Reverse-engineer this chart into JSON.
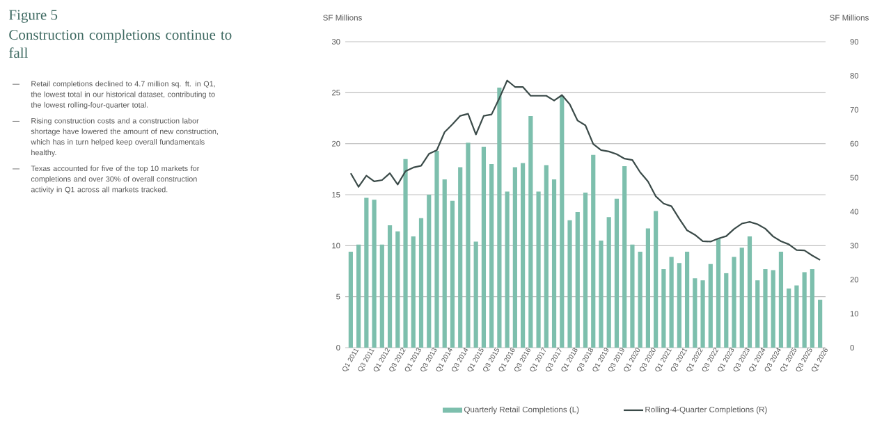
{
  "chart_data": {
    "type": "bar",
    "title": "Figure 5",
    "subtitle": "Construction completions continue to fall",
    "annotations": [
      "Retail completions declined to 4.7 million sq. ft. in Q1, the lowest total in our historical dataset, contributing to the lowest rolling-four-quarter total.",
      "Rising construction costs and a construction labor shortage have lowered the amount of new construction, which has in turn helped keep overall fundamentals healthy.",
      "Texas accounted for five of the top 10 markets for completions and over 30% of overall construction activity in Q1 across all markets tracked."
    ],
    "ylabel": "SF Millions",
    "y2label": "SF Millions",
    "categories": [
      "Q1 2011",
      null,
      "Q3 2011",
      null,
      "Q1 2012",
      null,
      "Q3 2012",
      null,
      "Q1 2013",
      null,
      "Q3 2013",
      null,
      "Q1 2014",
      null,
      "Q3 2014",
      null,
      "Q1 2015",
      null,
      "Q3 2015",
      null,
      "Q1 2016",
      null,
      "Q3 2016",
      null,
      "Q1 2017",
      null,
      "Q3 2017",
      null,
      "Q1 2018",
      null,
      "Q3 2018",
      null,
      "Q1 2019",
      null,
      "Q3 2019",
      null,
      "Q1 2020",
      null,
      "Q3 2020",
      null,
      "Q1 2021",
      null,
      "Q3 2021",
      null,
      "Q1 2022",
      null,
      "Q3 2022",
      null,
      "Q1 2023",
      null,
      "Q3 2023",
      null,
      "Q1 2024",
      null,
      "Q3 2024",
      null,
      "Q1 2025",
      null,
      "Q3 2025",
      null,
      "Q1 2026"
    ],
    "series": [
      {
        "name": "Quarterly Retail Completions (L)",
        "color": "#7dbfad",
        "values": [
          9.4,
          10.1,
          14.7,
          14.5,
          10.1,
          12.0,
          11.4,
          18.5,
          10.9,
          12.7,
          15.0,
          19.3,
          16.5,
          14.4,
          17.7,
          20.1,
          10.4,
          19.7,
          18.0,
          25.5,
          15.3,
          17.7,
          18.1,
          22.7,
          15.3,
          17.9,
          16.5,
          24.7,
          12.5,
          13.3,
          15.2,
          18.9,
          10.5,
          12.8,
          14.6,
          17.8,
          10.1,
          9.4,
          11.7,
          13.4,
          7.7,
          8.9,
          8.3,
          9.4,
          6.8,
          6.6,
          8.2,
          10.7,
          7.3,
          8.9,
          9.8,
          10.9,
          6.6,
          7.7,
          7.6,
          9.4,
          5.8,
          6.1,
          7.4,
          7.7,
          4.7
        ]
      },
      {
        "name": "Rolling-4-Quarter Completions (R)",
        "type": "line",
        "axis": "y2",
        "color": "#3a4a48",
        "values": [
          51.3,
          47.3,
          50.6,
          48.9,
          49.3,
          51.3,
          48.0,
          51.9,
          53.0,
          53.5,
          57.0,
          58.1,
          63.4,
          65.7,
          68.2,
          68.8,
          62.7,
          68.2,
          68.6,
          73.4,
          78.6,
          76.7,
          76.7,
          74.1,
          74.1,
          74.1,
          72.7,
          74.3,
          71.6,
          66.8,
          65.4,
          59.9,
          58.1,
          57.7,
          56.9,
          55.6,
          55.2,
          51.6,
          48.9,
          44.5,
          42.4,
          41.6,
          37.9,
          34.5,
          33.2,
          31.3,
          31.2,
          32.1,
          32.8,
          34.9,
          36.5,
          37.0,
          36.3,
          35.0,
          32.7,
          31.3,
          30.4,
          28.7,
          28.6,
          27.1,
          25.8
        ]
      }
    ],
    "ylim": [
      0,
      30
    ],
    "yticks": [
      0,
      5,
      10,
      15,
      20,
      25,
      30
    ],
    "y2lim": [
      0,
      90
    ],
    "y2ticks": [
      0,
      10,
      20,
      30,
      40,
      50,
      60,
      70,
      80,
      90
    ],
    "grid": "y",
    "legend": "bottom",
    "marker": "none",
    "line_style": "solid"
  }
}
